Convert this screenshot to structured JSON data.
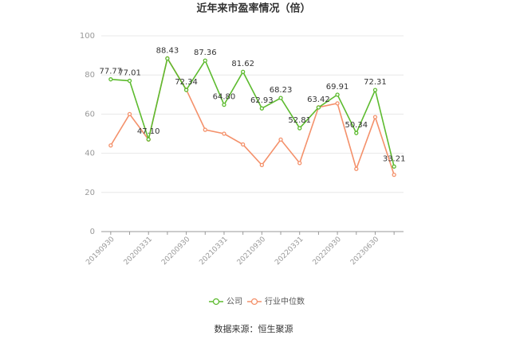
{
  "chart_data": {
    "type": "line",
    "title": "近年来市盈率情况（倍）",
    "categories": [
      "20190930",
      null,
      "20200331",
      null,
      "20200930",
      null,
      "20210331",
      null,
      "20210930",
      null,
      "20220331",
      null,
      "20220930",
      null,
      "20230630",
      null
    ],
    "series": [
      {
        "name": "公司",
        "color": "#5dbb2f",
        "values": [
          77.77,
          77.01,
          47.1,
          88.43,
          72.34,
          87.36,
          64.8,
          81.62,
          62.93,
          68.23,
          52.81,
          63.42,
          69.91,
          50.34,
          72.31,
          33.21
        ],
        "value_labels": [
          "77.77",
          "77.01",
          "47.10",
          "88.43",
          "72.34",
          "87.36",
          "64.80",
          "81.62",
          "62.93",
          "68.23",
          "52.81",
          "63.42",
          "69.91",
          "50.34",
          "72.31",
          "33.21"
        ]
      },
      {
        "name": "行业中位数",
        "color": "#f4916b",
        "values": [
          44,
          60,
          47,
          88.5,
          72.5,
          52,
          50,
          44.5,
          34,
          47,
          35,
          63.5,
          65.5,
          32,
          58.5,
          29
        ]
      }
    ],
    "ylim": [
      0,
      100
    ],
    "yticks": [
      0,
      20,
      40,
      60,
      80,
      100
    ],
    "grid": true,
    "source": "数据来源：恒生聚源"
  }
}
